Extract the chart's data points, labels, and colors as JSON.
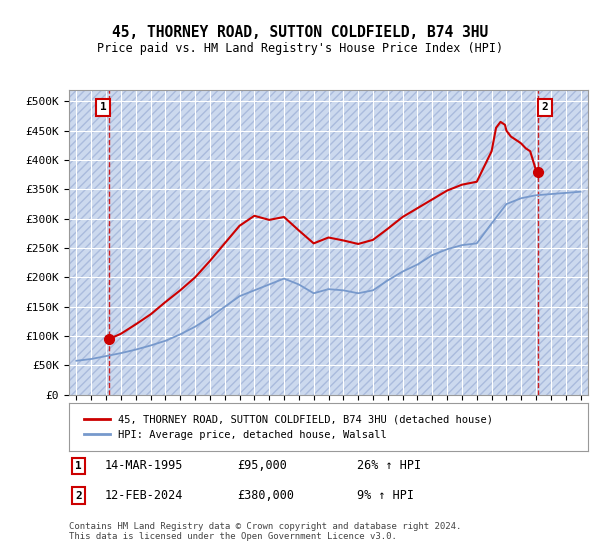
{
  "title": "45, THORNEY ROAD, SUTTON COLDFIELD, B74 3HU",
  "subtitle": "Price paid vs. HM Land Registry's House Price Index (HPI)",
  "background_color": "#ccd9ee",
  "grid_color": "#ffffff",
  "red_line_color": "#cc0000",
  "blue_line_color": "#7799cc",
  "ylim": [
    0,
    520000
  ],
  "yticks": [
    0,
    50000,
    100000,
    150000,
    200000,
    250000,
    300000,
    350000,
    400000,
    450000,
    500000
  ],
  "ytick_labels": [
    "£0",
    "£50K",
    "£100K",
    "£150K",
    "£200K",
    "£250K",
    "£300K",
    "£350K",
    "£400K",
    "£450K",
    "£500K"
  ],
  "xlim_start": 1992.5,
  "xlim_end": 2027.5,
  "xtick_years": [
    1993,
    1994,
    1995,
    1996,
    1997,
    1998,
    1999,
    2000,
    2001,
    2002,
    2003,
    2004,
    2005,
    2006,
    2007,
    2008,
    2009,
    2010,
    2011,
    2012,
    2013,
    2014,
    2015,
    2016,
    2017,
    2018,
    2019,
    2020,
    2021,
    2022,
    2023,
    2024,
    2025,
    2026,
    2027
  ],
  "transaction1_x": 1995.2,
  "transaction1_y": 95000,
  "transaction1_label": "1",
  "transaction2_x": 2024.1,
  "transaction2_y": 380000,
  "transaction2_label": "2",
  "legend_red": "45, THORNEY ROAD, SUTTON COLDFIELD, B74 3HU (detached house)",
  "legend_blue": "HPI: Average price, detached house, Walsall",
  "table_row1_num": "1",
  "table_row1_date": "14-MAR-1995",
  "table_row1_price": "£95,000",
  "table_row1_hpi": "26% ↑ HPI",
  "table_row2_num": "2",
  "table_row2_date": "12-FEB-2024",
  "table_row2_price": "£380,000",
  "table_row2_hpi": "9% ↑ HPI",
  "footer": "Contains HM Land Registry data © Crown copyright and database right 2024.\nThis data is licensed under the Open Government Licence v3.0.",
  "hpi_years": [
    1993,
    1994,
    1995,
    1996,
    1997,
    1998,
    1999,
    2000,
    2001,
    2002,
    2003,
    2004,
    2005,
    2006,
    2007,
    2008,
    2009,
    2010,
    2011,
    2012,
    2013,
    2014,
    2015,
    2016,
    2017,
    2018,
    2019,
    2020,
    2021,
    2022,
    2023,
    2024,
    2025,
    2026,
    2027
  ],
  "hpi_values": [
    58000,
    61000,
    66000,
    71000,
    77000,
    84000,
    92000,
    103000,
    116000,
    132000,
    150000,
    168000,
    178000,
    188000,
    198000,
    188000,
    173000,
    180000,
    178000,
    173000,
    178000,
    195000,
    210000,
    222000,
    238000,
    248000,
    255000,
    258000,
    292000,
    325000,
    335000,
    340000,
    342000,
    344000,
    346000
  ],
  "red_years": [
    1995.2,
    1996,
    1997,
    1998,
    1999,
    2000,
    2001,
    2002,
    2003,
    2004,
    2005,
    2006,
    2007,
    2008,
    2009,
    2010,
    2011,
    2012,
    2013,
    2014,
    2015,
    2016,
    2017,
    2018,
    2019,
    2020,
    2021,
    2021.3,
    2021.6,
    2021.9,
    2022,
    2022.3,
    2022.6,
    2022.9,
    2023,
    2023.3,
    2023.6,
    2024.0,
    2024.1
  ],
  "red_values": [
    95000,
    104000,
    120000,
    137000,
    158000,
    178000,
    200000,
    228000,
    258000,
    288000,
    305000,
    298000,
    303000,
    280000,
    258000,
    268000,
    263000,
    257000,
    264000,
    283000,
    303000,
    318000,
    333000,
    348000,
    358000,
    363000,
    415000,
    455000,
    465000,
    460000,
    450000,
    440000,
    435000,
    430000,
    428000,
    420000,
    415000,
    382000,
    380000
  ]
}
